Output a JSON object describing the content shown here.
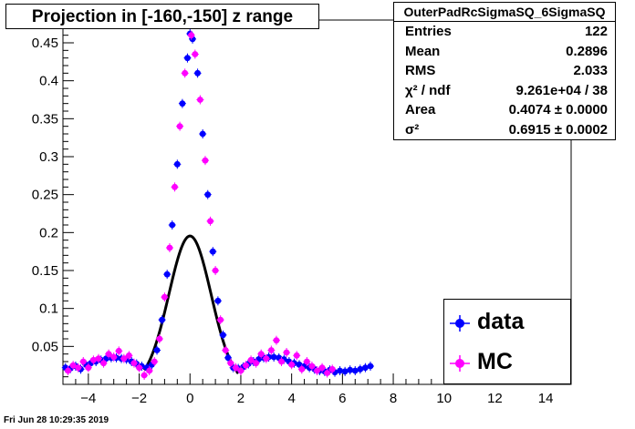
{
  "title": "Projection in [-160,-150] z range",
  "stats": {
    "name": "OuterPadRcSigmaSQ_6SigmaSQ",
    "rows": [
      {
        "key": "Entries",
        "value": "122"
      },
      {
        "key": "Mean",
        "value": "0.2896"
      },
      {
        "key": "RMS",
        "value": "2.033"
      },
      {
        "key": "χ² / ndf",
        "value": "9.261e+04 / 38"
      },
      {
        "key": "Area",
        "value": "0.4074  ± 0.0000"
      },
      {
        "key": "σ²",
        "value": "0.6915  ± 0.0002"
      }
    ]
  },
  "legend": [
    {
      "label": "data",
      "color": "#0000ff"
    },
    {
      "label": "MC",
      "color": "#ff00ff"
    }
  ],
  "footer": "Fri Jun 28 10:29:35 2019",
  "chart_data": {
    "type": "scatter",
    "title": "Projection in [-160,-150] z range",
    "xlim": [
      -5,
      15
    ],
    "ylim": [
      0,
      0.48
    ],
    "xticks": [
      -4,
      -2,
      0,
      2,
      4,
      6,
      8,
      10,
      12,
      14
    ],
    "yticks": [
      0.05,
      0.1,
      0.15,
      0.2,
      0.25,
      0.3,
      0.35,
      0.4,
      0.45
    ],
    "grid": false,
    "legend_position": "bottom-right",
    "fit": {
      "type": "gaussian",
      "area": 0.4074,
      "sigma2": 0.6915,
      "range": [
        -1.8,
        1.9
      ],
      "color": "#000000"
    },
    "series": [
      {
        "name": "data",
        "color": "#0000ff",
        "points": [
          [
            -4.9,
            0.022
          ],
          [
            -4.7,
            0.021
          ],
          [
            -4.5,
            0.024
          ],
          [
            -4.3,
            0.02
          ],
          [
            -4.1,
            0.026
          ],
          [
            -3.9,
            0.028
          ],
          [
            -3.7,
            0.03
          ],
          [
            -3.5,
            0.032
          ],
          [
            -3.3,
            0.034
          ],
          [
            -3.1,
            0.035
          ],
          [
            -2.9,
            0.035
          ],
          [
            -2.7,
            0.034
          ],
          [
            -2.5,
            0.033
          ],
          [
            -2.3,
            0.03
          ],
          [
            -2.1,
            0.027
          ],
          [
            -1.9,
            0.024
          ],
          [
            -1.7,
            0.022
          ],
          [
            -1.5,
            0.026
          ],
          [
            -1.3,
            0.045
          ],
          [
            -1.1,
            0.085
          ],
          [
            -0.9,
            0.145
          ],
          [
            -0.7,
            0.21
          ],
          [
            -0.5,
            0.29
          ],
          [
            -0.3,
            0.37
          ],
          [
            -0.1,
            0.43
          ],
          [
            0.0,
            0.462
          ],
          [
            0.1,
            0.455
          ],
          [
            0.3,
            0.41
          ],
          [
            0.5,
            0.33
          ],
          [
            0.7,
            0.25
          ],
          [
            0.9,
            0.175
          ],
          [
            1.1,
            0.11
          ],
          [
            1.3,
            0.065
          ],
          [
            1.5,
            0.035
          ],
          [
            1.7,
            0.022
          ],
          [
            1.9,
            0.021
          ],
          [
            2.1,
            0.023
          ],
          [
            2.3,
            0.027
          ],
          [
            2.5,
            0.03
          ],
          [
            2.7,
            0.033
          ],
          [
            2.9,
            0.035
          ],
          [
            3.1,
            0.036
          ],
          [
            3.3,
            0.036
          ],
          [
            3.5,
            0.035
          ],
          [
            3.7,
            0.033
          ],
          [
            3.9,
            0.03
          ],
          [
            4.1,
            0.028
          ],
          [
            4.3,
            0.026
          ],
          [
            4.5,
            0.024
          ],
          [
            4.7,
            0.022
          ],
          [
            4.9,
            0.02
          ],
          [
            5.1,
            0.018
          ],
          [
            5.3,
            0.017
          ],
          [
            5.5,
            0.019
          ],
          [
            5.7,
            0.016
          ],
          [
            5.9,
            0.018
          ],
          [
            6.1,
            0.017
          ],
          [
            6.3,
            0.019
          ],
          [
            6.5,
            0.018
          ],
          [
            6.7,
            0.02
          ],
          [
            6.9,
            0.022
          ],
          [
            7.1,
            0.024
          ]
        ]
      },
      {
        "name": "MC",
        "color": "#ff00ff",
        "points": [
          [
            -4.8,
            0.018
          ],
          [
            -4.6,
            0.025
          ],
          [
            -4.4,
            0.022
          ],
          [
            -4.2,
            0.03
          ],
          [
            -4.0,
            0.022
          ],
          [
            -3.8,
            0.032
          ],
          [
            -3.6,
            0.034
          ],
          [
            -3.4,
            0.028
          ],
          [
            -3.2,
            0.04
          ],
          [
            -3.0,
            0.036
          ],
          [
            -2.8,
            0.044
          ],
          [
            -2.6,
            0.034
          ],
          [
            -2.4,
            0.038
          ],
          [
            -2.2,
            0.028
          ],
          [
            -2.0,
            0.022
          ],
          [
            -1.8,
            0.012
          ],
          [
            -1.6,
            0.018
          ],
          [
            -1.4,
            0.03
          ],
          [
            -1.2,
            0.06
          ],
          [
            -1.0,
            0.115
          ],
          [
            -0.8,
            0.18
          ],
          [
            -0.6,
            0.26
          ],
          [
            -0.4,
            0.34
          ],
          [
            -0.2,
            0.41
          ],
          [
            0.05,
            0.46
          ],
          [
            0.2,
            0.435
          ],
          [
            0.4,
            0.375
          ],
          [
            0.6,
            0.295
          ],
          [
            0.8,
            0.215
          ],
          [
            1.0,
            0.15
          ],
          [
            1.2,
            0.085
          ],
          [
            1.4,
            0.045
          ],
          [
            1.6,
            0.028
          ],
          [
            1.8,
            0.022
          ],
          [
            2.0,
            0.018
          ],
          [
            2.2,
            0.025
          ],
          [
            2.4,
            0.032
          ],
          [
            2.6,
            0.028
          ],
          [
            2.8,
            0.04
          ],
          [
            3.0,
            0.034
          ],
          [
            3.2,
            0.045
          ],
          [
            3.4,
            0.058
          ],
          [
            3.6,
            0.03
          ],
          [
            3.8,
            0.042
          ],
          [
            4.0,
            0.026
          ],
          [
            4.2,
            0.038
          ],
          [
            4.4,
            0.02
          ],
          [
            4.6,
            0.03
          ],
          [
            4.8,
            0.024
          ],
          [
            5.0,
            0.018
          ],
          [
            5.2,
            0.022
          ],
          [
            5.4,
            0.015
          ],
          [
            5.6,
            0.02
          ]
        ]
      }
    ]
  }
}
